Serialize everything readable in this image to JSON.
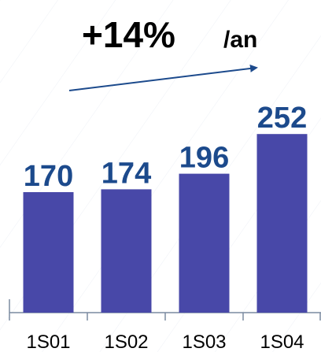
{
  "chart_data": {
    "type": "bar",
    "annotations": [
      "+14%",
      "/an"
    ],
    "categories": [
      "1S01",
      "1S02",
      "1S03",
      "1S04"
    ],
    "values": [
      170,
      174,
      196,
      252
    ],
    "color": "#4848a8",
    "label_color": "#1c4a8c",
    "ylim": [
      0,
      440
    ]
  }
}
